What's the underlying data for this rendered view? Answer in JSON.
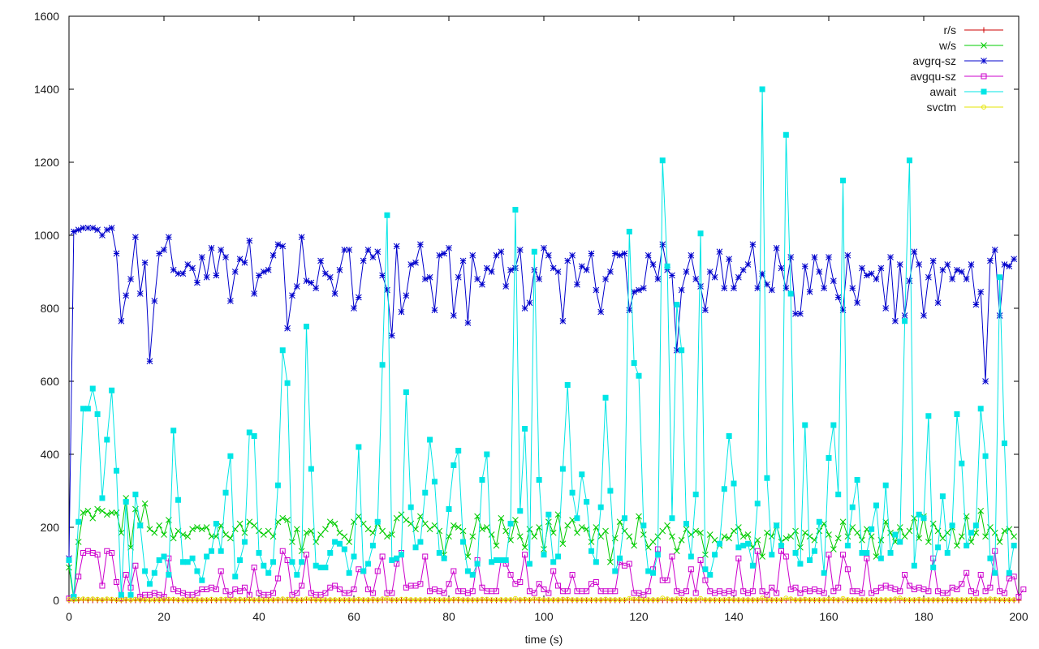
{
  "chart_data": {
    "type": "line",
    "xlabel": "time (s)",
    "ylabel": "",
    "xlim": [
      0,
      200
    ],
    "ylim": [
      0,
      1600
    ],
    "x_ticks": [
      "0",
      "20",
      "40",
      "60",
      "80",
      "100",
      "120",
      "140",
      "160",
      "180",
      "200"
    ],
    "y_ticks": [
      "0",
      "200",
      "400",
      "600",
      "800",
      "1000",
      "1200",
      "1400",
      "1600"
    ],
    "grid": false,
    "legend_position": "top-right",
    "series": [
      {
        "name": "r/s",
        "color": "#cc0000",
        "marker": "plus",
        "values": [
          0,
          0,
          0,
          0,
          0,
          0,
          0,
          0,
          0,
          0,
          0,
          0,
          0,
          0,
          0,
          0,
          0,
          0,
          0,
          0,
          0,
          0,
          0,
          0,
          0,
          0,
          0,
          0,
          0,
          0,
          0,
          0,
          0,
          0,
          0,
          0,
          0,
          0,
          0,
          0,
          0,
          0,
          0,
          0,
          0,
          0,
          0,
          0,
          0,
          0,
          0,
          0,
          0,
          0,
          0,
          0,
          0,
          0,
          0,
          0,
          0,
          0,
          0,
          0,
          0,
          0,
          0,
          0,
          0,
          0,
          0,
          0,
          0,
          0,
          0,
          0,
          0,
          0,
          0,
          0,
          0,
          0,
          0,
          0,
          0,
          0,
          0,
          0,
          0,
          0,
          0,
          0,
          0,
          0,
          0,
          0,
          0,
          0,
          0,
          0,
          0,
          0,
          0,
          0,
          0,
          0,
          0,
          0,
          0,
          0,
          0,
          0,
          0,
          0,
          0,
          0,
          0,
          0,
          0,
          0,
          0,
          0,
          0,
          0,
          0,
          0,
          0,
          0,
          0,
          0,
          0,
          0,
          0,
          0,
          0,
          0,
          0,
          0,
          0,
          0,
          0,
          0,
          0,
          0,
          0,
          0,
          0,
          0,
          0,
          0,
          0,
          0,
          0,
          0,
          0,
          0,
          0,
          0,
          0,
          0,
          0,
          0,
          0,
          0,
          0,
          0,
          0,
          0,
          0,
          0,
          0,
          0,
          0,
          0,
          0,
          0,
          0,
          0,
          0,
          0,
          0,
          0,
          0,
          0,
          0,
          0,
          0,
          0,
          0,
          0,
          0,
          0,
          0,
          0,
          0,
          0,
          0,
          0,
          0,
          0,
          0
        ]
      },
      {
        "name": "w/s",
        "color": "#00cc00",
        "marker": "cross",
        "values": [
          90,
          5,
          160,
          240,
          245,
          225,
          250,
          245,
          235,
          240,
          240,
          185,
          280,
          145,
          250,
          205,
          265,
          195,
          185,
          205,
          180,
          220,
          170,
          190,
          180,
          175,
          195,
          200,
          195,
          200,
          175,
          175,
          205,
          180,
          170,
          195,
          210,
          185,
          215,
          205,
          190,
          180,
          190,
          175,
          215,
          225,
          220,
          160,
          195,
          135,
          185,
          190,
          160,
          180,
          195,
          215,
          210,
          185,
          175,
          160,
          215,
          230,
          210,
          195,
          185,
          210,
          190,
          175,
          180,
          225,
          235,
          220,
          210,
          195,
          230,
          210,
          195,
          205,
          190,
          125,
          175,
          205,
          200,
          190,
          120,
          175,
          230,
          195,
          200,
          180,
          150,
          225,
          190,
          165,
          220,
          175,
          145,
          195,
          175,
          200,
          140,
          215,
          185,
          235,
          155,
          205,
          220,
          185,
          200,
          195,
          160,
          200,
          175,
          190,
          105,
          170,
          215,
          190,
          175,
          150,
          230,
          180,
          145,
          160,
          175,
          190,
          205,
          175,
          135,
          165,
          195,
          180,
          190,
          185,
          125,
          180,
          165,
          150,
          175,
          170,
          190,
          200,
          175,
          180,
          145,
          165,
          120,
          185,
          175,
          205,
          160,
          170,
          175,
          190,
          145,
          185,
          175,
          165,
          190,
          210,
          180,
          140,
          170,
          215,
          175,
          200,
          185,
          165,
          195,
          175,
          120,
          165,
          215,
          185,
          160,
          200,
          175,
          190,
          225,
          170,
          230,
          160,
          210,
          190,
          170,
          185,
          200,
          150,
          175,
          230,
          160,
          185,
          245,
          175,
          200,
          185,
          160,
          190,
          195,
          175
        ]
      },
      {
        "name": "avgrq-sz",
        "color": "#0000cc",
        "marker": "star",
        "values": [
          115,
          1010,
          1015,
          1020,
          1020,
          1020,
          1015,
          1000,
          1015,
          1020,
          950,
          765,
          835,
          880,
          995,
          840,
          925,
          655,
          820,
          950,
          960,
          995,
          905,
          895,
          895,
          920,
          910,
          870,
          940,
          885,
          965,
          890,
          960,
          940,
          820,
          900,
          935,
          925,
          985,
          840,
          890,
          900,
          905,
          945,
          975,
          970,
          745,
          835,
          860,
          995,
          875,
          870,
          855,
          930,
          895,
          885,
          840,
          905,
          960,
          960,
          800,
          830,
          930,
          960,
          940,
          955,
          890,
          850,
          725,
          970,
          790,
          835,
          920,
          925,
          975,
          880,
          885,
          795,
          945,
          950,
          965,
          780,
          885,
          930,
          760,
          945,
          880,
          865,
          910,
          900,
          945,
          955,
          860,
          905,
          910,
          960,
          800,
          815,
          905,
          880,
          965,
          945,
          910,
          900,
          765,
          930,
          945,
          865,
          915,
          905,
          950,
          850,
          790,
          880,
          900,
          950,
          945,
          950,
          795,
          845,
          850,
          855,
          945,
          920,
          880,
          975,
          905,
          890,
          685,
          850,
          900,
          945,
          880,
          860,
          795,
          900,
          885,
          955,
          855,
          935,
          855,
          885,
          905,
          920,
          975,
          855,
          895,
          865,
          850,
          965,
          910,
          855,
          940,
          785,
          785,
          915,
          845,
          940,
          900,
          855,
          940,
          875,
          830,
          795,
          945,
          855,
          815,
          910,
          890,
          895,
          880,
          910,
          800,
          940,
          765,
          920,
          780,
          875,
          955,
          920,
          780,
          885,
          930,
          815,
          905,
          920,
          880,
          905,
          900,
          880,
          920,
          810,
          845,
          600,
          930,
          960,
          780,
          920,
          915,
          935
        ]
      },
      {
        "name": "avgqu-sz",
        "color": "#cc00cc",
        "marker": "square",
        "values": [
          5,
          10,
          65,
          130,
          135,
          130,
          125,
          40,
          135,
          130,
          50,
          5,
          70,
          35,
          95,
          10,
          15,
          15,
          20,
          15,
          10,
          115,
          30,
          25,
          20,
          15,
          15,
          20,
          30,
          30,
          35,
          30,
          80,
          25,
          15,
          30,
          25,
          35,
          15,
          90,
          20,
          15,
          15,
          20,
          60,
          135,
          110,
          15,
          20,
          40,
          125,
          20,
          15,
          15,
          20,
          35,
          40,
          30,
          20,
          20,
          30,
          85,
          80,
          30,
          20,
          80,
          120,
          20,
          20,
          100,
          130,
          35,
          40,
          40,
          45,
          120,
          25,
          30,
          25,
          20,
          45,
          80,
          25,
          25,
          20,
          25,
          110,
          35,
          25,
          25,
          25,
          110,
          100,
          70,
          45,
          50,
          125,
          25,
          20,
          45,
          30,
          20,
          80,
          40,
          25,
          25,
          70,
          25,
          25,
          25,
          45,
          50,
          25,
          25,
          25,
          25,
          105,
          95,
          100,
          20,
          20,
          15,
          25,
          85,
          140,
          55,
          55,
          120,
          25,
          20,
          25,
          85,
          20,
          110,
          55,
          25,
          20,
          25,
          20,
          25,
          20,
          115,
          25,
          20,
          25,
          135,
          25,
          15,
          35,
          20,
          135,
          120,
          30,
          35,
          20,
          30,
          25,
          30,
          25,
          20,
          125,
          25,
          35,
          125,
          85,
          25,
          25,
          20,
          115,
          20,
          25,
          35,
          40,
          35,
          30,
          25,
          70,
          40,
          30,
          35,
          30,
          25,
          115,
          25,
          20,
          20,
          35,
          30,
          45,
          75,
          25,
          20,
          70,
          25,
          35,
          135,
          25,
          20,
          60,
          65,
          10,
          30
        ]
      },
      {
        "name": "await",
        "color": "#00e5e5",
        "marker": "filled-square",
        "values": [
          110,
          10,
          215,
          525,
          525,
          580,
          510,
          280,
          440,
          575,
          355,
          15,
          270,
          15,
          290,
          205,
          80,
          45,
          75,
          110,
          120,
          70,
          465,
          275,
          105,
          105,
          115,
          80,
          55,
          120,
          135,
          210,
          135,
          295,
          395,
          65,
          110,
          160,
          460,
          450,
          130,
          95,
          75,
          105,
          315,
          685,
          595,
          105,
          70,
          105,
          750,
          360,
          95,
          90,
          90,
          130,
          160,
          155,
          140,
          75,
          120,
          420,
          80,
          100,
          150,
          215,
          645,
          1055,
          110,
          115,
          125,
          570,
          255,
          145,
          160,
          295,
          440,
          325,
          130,
          115,
          250,
          370,
          410,
          160,
          80,
          70,
          100,
          330,
          400,
          105,
          110,
          110,
          110,
          210,
          1070,
          245,
          470,
          100,
          955,
          330,
          125,
          235,
          105,
          120,
          360,
          590,
          295,
          225,
          345,
          270,
          135,
          105,
          255,
          555,
          300,
          80,
          115,
          225,
          1010,
          650,
          615,
          205,
          80,
          75,
          125,
          1205,
          915,
          225,
          810,
          685,
          210,
          120,
          290,
          1005,
          85,
          70,
          125,
          155,
          305,
          450,
          320,
          145,
          150,
          155,
          95,
          265,
          1400,
          335,
          125,
          205,
          150,
          1275,
          840,
          130,
          100,
          480,
          110,
          135,
          215,
          75,
          390,
          480,
          290,
          1150,
          150,
          255,
          330,
          130,
          130,
          195,
          260,
          115,
          315,
          130,
          180,
          160,
          765,
          1205,
          95,
          235,
          225,
          505,
          90,
          145,
          285,
          130,
          205,
          510,
          375,
          150,
          185,
          205,
          525,
          395,
          115,
          75,
          885,
          430,
          75,
          150
        ]
      },
      {
        "name": "svctm",
        "color": "#e5e500",
        "marker": "circle",
        "values": [
          2,
          2,
          3,
          4,
          3,
          4,
          3,
          2,
          4,
          3,
          2,
          1,
          3,
          1,
          3,
          2,
          2,
          1,
          2,
          2,
          2,
          3,
          3,
          2,
          2,
          2,
          2,
          2,
          2,
          2,
          3,
          2,
          3,
          3,
          2,
          2,
          3,
          2,
          3,
          2,
          2,
          2,
          2,
          2,
          3,
          4,
          3,
          2,
          2,
          2,
          4,
          3,
          2,
          2,
          2,
          2,
          2,
          2,
          2,
          2,
          2,
          3,
          2,
          2,
          3,
          2,
          4,
          5,
          2,
          2,
          3,
          3,
          2,
          2,
          2,
          2,
          3,
          2,
          2,
          2,
          2,
          3,
          3,
          2,
          2,
          2,
          2,
          3,
          3,
          2,
          2,
          2,
          2,
          2,
          5,
          2,
          3,
          2,
          4,
          3,
          2,
          2,
          2,
          2,
          3,
          3,
          2,
          2,
          2,
          2,
          2,
          2,
          2,
          3,
          2,
          2,
          2,
          2,
          5,
          3,
          3,
          2,
          2,
          2,
          2,
          6,
          4,
          2,
          4,
          3,
          2,
          2,
          2,
          5,
          2,
          2,
          2,
          2,
          2,
          3,
          2,
          2,
          2,
          2,
          2,
          2,
          6,
          2,
          2,
          2,
          2,
          6,
          4,
          2,
          2,
          3,
          2,
          2,
          2,
          2,
          3,
          3,
          2,
          5,
          2,
          2,
          2,
          2,
          2,
          2,
          2,
          2,
          2,
          2,
          4,
          6,
          2,
          2,
          2,
          3,
          2,
          2,
          2,
          2,
          2,
          3,
          2,
          2,
          2,
          2,
          3,
          3,
          2,
          2,
          4,
          3,
          2,
          2,
          2,
          2
        ]
      }
    ]
  }
}
